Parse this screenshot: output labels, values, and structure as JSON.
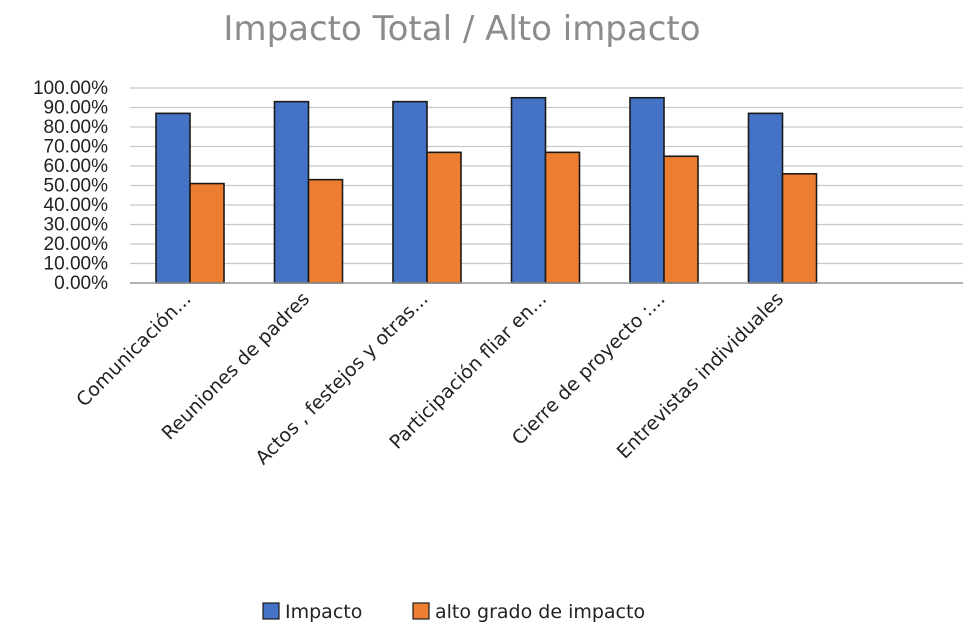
{
  "chart_data": {
    "type": "bar",
    "title": "Impacto Total / Alto impacto",
    "xlabel": "",
    "ylabel": "",
    "ylim": [
      0,
      1
    ],
    "y_tick_step": 0.1,
    "y_tick_labels": [
      "0.00%",
      "10.00%",
      "20.00%",
      "30.00%",
      "40.00%",
      "50.00%",
      "60.00%",
      "70.00%",
      "80.00%",
      "90.00%",
      "100.00%"
    ],
    "categories": [
      "Comunicación...",
      "Reuniones de padres",
      "Actos , festejos y otras...",
      "Participación fliar en...",
      "Cierre de proyecto :...",
      "Entrevistas individuales"
    ],
    "series": [
      {
        "name": "Impacto",
        "color": "#4472C4",
        "values": [
          0.87,
          0.93,
          0.93,
          0.95,
          0.95,
          0.87
        ]
      },
      {
        "name": "alto grado de impacto",
        "color": "#ED7D31",
        "values": [
          0.51,
          0.53,
          0.67,
          0.67,
          0.65,
          0.56
        ]
      }
    ],
    "grid": true,
    "legend_position": "bottom"
  }
}
